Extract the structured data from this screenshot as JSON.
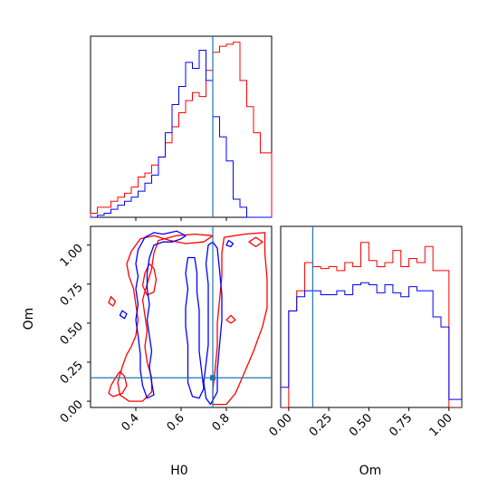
{
  "chart_data": {
    "type": "corner",
    "parameters": [
      "H0",
      "Om"
    ],
    "truths": {
      "H0": 0.74,
      "Om": 0.15
    },
    "colors": {
      "series_a": "#ff0000",
      "series_b": "#0000ff",
      "truth": "#1f77b4"
    },
    "panels": [
      {
        "id": "hist-H0",
        "type": "histogram",
        "x": "H0",
        "xlim": [
          0.2,
          1.0
        ],
        "bin_edges": [
          0.2,
          0.23,
          0.26,
          0.29,
          0.32,
          0.35,
          0.38,
          0.41,
          0.44,
          0.47,
          0.5,
          0.53,
          0.56,
          0.59,
          0.62,
          0.65,
          0.68,
          0.71,
          0.74,
          0.77,
          0.8,
          0.83,
          0.86,
          0.89,
          0.92,
          0.95,
          0.98,
          1.0
        ],
        "series": [
          {
            "name": "",
            "color": "#ff0000",
            "values": [
              0.02,
              0.05,
              0.05,
              0.08,
              0.1,
              0.12,
              0.15,
              0.2,
              0.22,
              0.26,
              0.3,
              0.37,
              0.45,
              0.52,
              0.58,
              0.62,
              0.6,
              0.73,
              0.82,
              0.85,
              0.86,
              0.87,
              0.68,
              0.55,
              0.42,
              0.32,
              0.32
            ]
          },
          {
            "name": "",
            "color": "#0000ff",
            "values": [
              0.0,
              0.01,
              0.02,
              0.04,
              0.06,
              0.08,
              0.1,
              0.13,
              0.17,
              0.21,
              0.3,
              0.42,
              0.56,
              0.65,
              0.77,
              0.74,
              0.83,
              0.68,
              0.5,
              0.4,
              0.28,
              0.09,
              0.05,
              0.0,
              0.0,
              0.0,
              0.0
            ]
          }
        ]
      },
      {
        "id": "contour-H0-Om",
        "type": "contour",
        "x": "H0",
        "y": "Om",
        "xlim": [
          0.2,
          1.0
        ],
        "ylim": [
          -0.04,
          1.12
        ],
        "xticks": [
          "0.4",
          "0.6",
          "0.8"
        ],
        "yticks": [
          "0.00",
          "0.25",
          "0.50",
          "0.75",
          "1.00"
        ],
        "series": [
          {
            "color": "#ff0000",
            "contours": [
              [
                [
                  0.33,
                  0.19
                ],
                [
                  0.31,
                  0.15
                ],
                [
                  0.29,
                  0.1
                ],
                [
                  0.28,
                  0.05
                ],
                [
                  0.3,
                  0.03
                ],
                [
                  0.34,
                  0.05
                ],
                [
                  0.36,
                  0.1
                ],
                [
                  0.35,
                  0.16
                ],
                [
                  0.33,
                  0.19
                ]
              ],
              [
                [
                  0.46,
                  0.88
                ],
                [
                  0.44,
                  0.82
                ],
                [
                  0.43,
                  0.74
                ],
                [
                  0.45,
                  0.68
                ],
                [
                  0.48,
                  0.7
                ],
                [
                  0.49,
                  0.78
                ],
                [
                  0.48,
                  0.85
                ],
                [
                  0.46,
                  0.88
                ]
              ],
              [
                [
                  0.97,
                  1.08
                ],
                [
                  0.88,
                  1.07
                ],
                [
                  0.79,
                  1.05
                ],
                [
                  0.78,
                  0.95
                ],
                [
                  0.78,
                  0.8
                ],
                [
                  0.77,
                  0.65
                ],
                [
                  0.76,
                  0.5
                ],
                [
                  0.76,
                  0.35
                ],
                [
                  0.75,
                  0.2
                ],
                [
                  0.74,
                  0.07
                ],
                [
                  0.74,
                  -0.02
                ],
                [
                  0.8,
                  -0.02
                ],
                [
                  0.84,
                  0.05
                ],
                [
                  0.87,
                  0.15
                ],
                [
                  0.92,
                  0.32
                ],
                [
                  0.96,
                  0.48
                ],
                [
                  0.98,
                  0.6
                ],
                [
                  0.98,
                  0.78
                ],
                [
                  0.97,
                  0.95
                ],
                [
                  0.97,
                  1.08
                ]
              ],
              [
                [
                  0.82,
                  0.55
                ],
                [
                  0.8,
                  0.52
                ],
                [
                  0.82,
                  0.5
                ],
                [
                  0.84,
                  0.52
                ],
                [
                  0.82,
                  0.55
                ]
              ],
              [
                [
                  0.29,
                  0.67
                ],
                [
                  0.28,
                  0.63
                ],
                [
                  0.3,
                  0.61
                ],
                [
                  0.31,
                  0.64
                ],
                [
                  0.29,
                  0.67
                ]
              ],
              [
                [
                  0.93,
                  1.05
                ],
                [
                  0.9,
                  1.02
                ],
                [
                  0.93,
                  0.99
                ],
                [
                  0.96,
                  1.02
                ],
                [
                  0.93,
                  1.05
                ]
              ],
              [
                [
                  0.42,
                  1.04
                ],
                [
                  0.38,
                  0.96
                ],
                [
                  0.36,
                  0.88
                ],
                [
                  0.37,
                  0.8
                ],
                [
                  0.39,
                  0.72
                ],
                [
                  0.4,
                  0.62
                ],
                [
                  0.41,
                  0.52
                ],
                [
                  0.4,
                  0.42
                ],
                [
                  0.38,
                  0.35
                ],
                [
                  0.36,
                  0.3
                ],
                [
                  0.34,
                  0.22
                ],
                [
                  0.32,
                  0.12
                ],
                [
                  0.33,
                  0.04
                ],
                [
                  0.37,
                  0.0
                ],
                [
                  0.43,
                  0.0
                ],
                [
                  0.47,
                  0.06
                ],
                [
                  0.47,
                  0.15
                ],
                [
                  0.45,
                  0.25
                ],
                [
                  0.44,
                  0.35
                ],
                [
                  0.45,
                  0.45
                ],
                [
                  0.44,
                  0.55
                ],
                [
                  0.43,
                  0.65
                ],
                [
                  0.45,
                  0.75
                ],
                [
                  0.47,
                  0.85
                ],
                [
                  0.48,
                  0.95
                ],
                [
                  0.5,
                  1.03
                ],
                [
                  0.58,
                  1.06
                ],
                [
                  0.66,
                  1.07
                ],
                [
                  0.74,
                  1.06
                ],
                [
                  0.7,
                  1.02
                ],
                [
                  0.62,
                  1.01
                ],
                [
                  0.55,
                  1.03
                ],
                [
                  0.48,
                  1.06
                ],
                [
                  0.42,
                  1.04
                ]
              ]
            ]
          },
          {
            "color": "#0000ff",
            "contours": [
              [
                [
                  0.44,
                  1.05
                ],
                [
                  0.41,
                  0.97
                ],
                [
                  0.4,
                  0.88
                ],
                [
                  0.41,
                  0.8
                ],
                [
                  0.4,
                  0.72
                ],
                [
                  0.41,
                  0.62
                ],
                [
                  0.4,
                  0.52
                ],
                [
                  0.41,
                  0.42
                ],
                [
                  0.42,
                  0.3
                ],
                [
                  0.42,
                  0.2
                ],
                [
                  0.43,
                  0.1
                ],
                [
                  0.45,
                  0.02
                ],
                [
                  0.48,
                  0.04
                ],
                [
                  0.47,
                  0.12
                ],
                [
                  0.46,
                  0.22
                ],
                [
                  0.47,
                  0.32
                ],
                [
                  0.46,
                  0.42
                ],
                [
                  0.45,
                  0.52
                ],
                [
                  0.46,
                  0.62
                ],
                [
                  0.45,
                  0.72
                ],
                [
                  0.45,
                  0.82
                ],
                [
                  0.46,
                  0.92
                ],
                [
                  0.48,
                  1.0
                ],
                [
                  0.52,
                  1.02
                ],
                [
                  0.56,
                  1.02
                ],
                [
                  0.6,
                  1.04
                ],
                [
                  0.62,
                  1.06
                ],
                [
                  0.58,
                  1.09
                ],
                [
                  0.52,
                  1.07
                ],
                [
                  0.48,
                  1.08
                ],
                [
                  0.44,
                  1.05
                ]
              ],
              [
                [
                  0.63,
                  0.92
                ],
                [
                  0.62,
                  0.82
                ],
                [
                  0.63,
                  0.72
                ],
                [
                  0.62,
                  0.6
                ],
                [
                  0.62,
                  0.48
                ],
                [
                  0.63,
                  0.36
                ],
                [
                  0.63,
                  0.24
                ],
                [
                  0.63,
                  0.12
                ],
                [
                  0.65,
                  0.03
                ],
                [
                  0.68,
                  0.02
                ],
                [
                  0.7,
                  0.08
                ],
                [
                  0.69,
                  0.2
                ],
                [
                  0.68,
                  0.32
                ],
                [
                  0.68,
                  0.45
                ],
                [
                  0.68,
                  0.58
                ],
                [
                  0.67,
                  0.7
                ],
                [
                  0.67,
                  0.82
                ],
                [
                  0.66,
                  0.92
                ],
                [
                  0.63,
                  0.92
                ]
              ],
              [
                [
                  0.72,
                  1.0
                ],
                [
                  0.71,
                  0.88
                ],
                [
                  0.72,
                  0.75
                ],
                [
                  0.72,
                  0.62
                ],
                [
                  0.72,
                  0.48
                ],
                [
                  0.72,
                  0.36
                ],
                [
                  0.71,
                  0.24
                ],
                [
                  0.7,
                  0.12
                ],
                [
                  0.71,
                  0.02
                ],
                [
                  0.73,
                  -0.02
                ],
                [
                  0.76,
                  0.06
                ],
                [
                  0.76,
                  0.2
                ],
                [
                  0.77,
                  0.36
                ],
                [
                  0.78,
                  0.52
                ],
                [
                  0.78,
                  0.68
                ],
                [
                  0.77,
                  0.84
                ],
                [
                  0.76,
                  0.98
                ],
                [
                  0.74,
                  1.02
                ],
                [
                  0.72,
                  1.0
                ]
              ],
              [
                [
                  0.34,
                  0.58
                ],
                [
                  0.33,
                  0.55
                ],
                [
                  0.35,
                  0.53
                ],
                [
                  0.36,
                  0.56
                ],
                [
                  0.34,
                  0.58
                ]
              ],
              [
                [
                  0.81,
                  1.03
                ],
                [
                  0.8,
                  1.0
                ],
                [
                  0.82,
                  0.99
                ],
                [
                  0.83,
                  1.01
                ],
                [
                  0.81,
                  1.03
                ]
              ]
            ]
          }
        ]
      },
      {
        "id": "hist-Om",
        "type": "histogram",
        "x": "Om",
        "xlim": [
          -0.05,
          1.08
        ],
        "xticks": [
          "0.00",
          "0.25",
          "0.50",
          "0.75",
          "1.00"
        ],
        "bin_edges": [
          -0.05,
          0.0,
          0.05,
          0.1,
          0.15,
          0.2,
          0.25,
          0.3,
          0.35,
          0.4,
          0.45,
          0.5,
          0.55,
          0.6,
          0.65,
          0.7,
          0.75,
          0.8,
          0.85,
          0.9,
          0.95,
          1.0,
          1.08
        ],
        "series": [
          {
            "name": "",
            "color": "#ff0000",
            "values": [
              0.0,
              0.48,
              0.58,
              0.72,
              0.7,
              0.69,
              0.7,
              0.68,
              0.72,
              0.7,
              0.82,
              0.73,
              0.7,
              0.72,
              0.78,
              0.7,
              0.74,
              0.72,
              0.8,
              0.68,
              0.68,
              0.0
            ]
          },
          {
            "name": "",
            "color": "#0000ff",
            "values": [
              0.1,
              0.48,
              0.55,
              0.58,
              0.58,
              0.56,
              0.56,
              0.58,
              0.56,
              0.61,
              0.62,
              0.61,
              0.57,
              0.61,
              0.57,
              0.55,
              0.6,
              0.58,
              0.58,
              0.45,
              0.4,
              0.04
            ]
          }
        ]
      }
    ],
    "xlabels": [
      "H0",
      "Om"
    ],
    "ylabel": "Om"
  }
}
